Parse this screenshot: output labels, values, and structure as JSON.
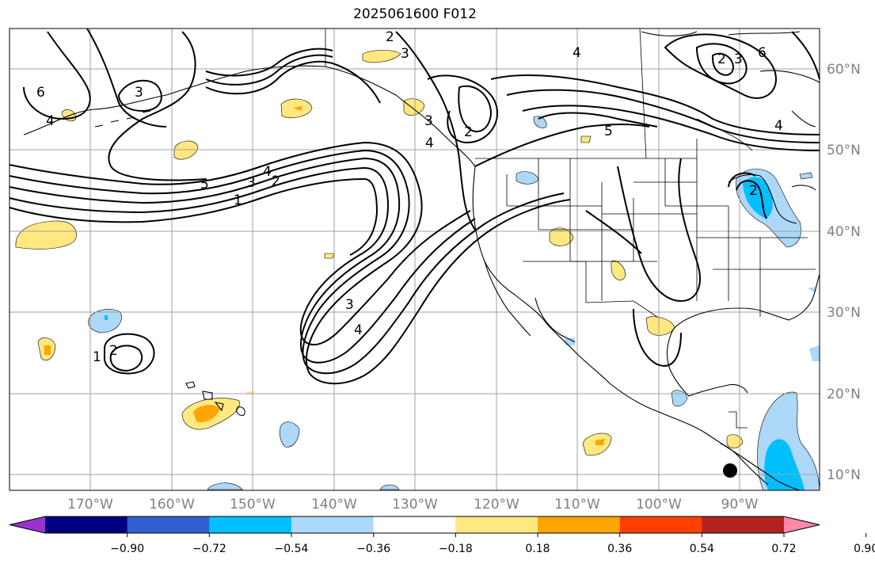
{
  "title": "2025061600 F012",
  "latitude_labels": [
    "60°N",
    "50°N",
    "40°N",
    "30°N",
    "20°N",
    "10°N"
  ],
  "longitude_labels": [
    "170°W",
    "160°W",
    "150°W",
    "140°W",
    "130°W",
    "120°W",
    "110°W",
    "100°W",
    "90°W"
  ],
  "colorbar": {
    "ticks": [
      "−0.90",
      "−0.72",
      "−0.54",
      "−0.36",
      "−0.18",
      "0.18",
      "0.36",
      "0.54",
      "0.72",
      "0.90"
    ],
    "colors": [
      "#9933cc",
      "#000080",
      "#3060d0",
      "#00bfff",
      "#add8f8",
      "#ffffff",
      "#ffe880",
      "#ffa500",
      "#ff4000",
      "#b22222",
      "#ff88aa"
    ]
  },
  "contour_labels": [
    "2",
    "3",
    "3",
    "4",
    "6",
    "6",
    "4",
    "3",
    "5",
    "4",
    "3",
    "2",
    "1",
    "4",
    "5",
    "2",
    "2",
    "4",
    "3",
    "1",
    "2",
    "2",
    "3",
    "4"
  ],
  "colors": {
    "positive_light": "#ffe880",
    "positive_mid": "#ffa500",
    "negative_light": "#add8f8",
    "negative_mid": "#00bfff",
    "negative_dark": "#3060d0",
    "gridline": "#a0a0a0"
  }
}
